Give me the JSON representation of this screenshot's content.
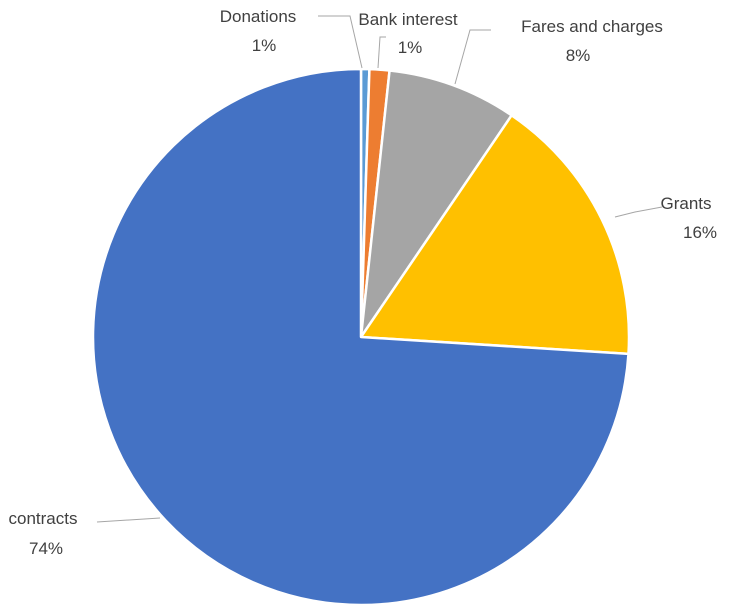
{
  "chart_data": {
    "type": "pie",
    "title": "",
    "slices": [
      {
        "name": "Donations",
        "label": "1%",
        "value": 0.5,
        "color": "#5B9BD5"
      },
      {
        "name": "Bank interest",
        "label": "1%",
        "value": 1.2,
        "color": "#ED7D31"
      },
      {
        "name": "Fares and charges",
        "label": "8%",
        "value": 7.8,
        "color": "#A5A5A5"
      },
      {
        "name": "Grants",
        "label": "16%",
        "value": 16.5,
        "color": "#FFC000"
      },
      {
        "name": "contracts",
        "label": "74%",
        "value": 74.0,
        "color": "#4472C4"
      }
    ],
    "start_angle": "12 o'clock",
    "direction": "clockwise",
    "legend": "none (data labels with leader lines)"
  }
}
